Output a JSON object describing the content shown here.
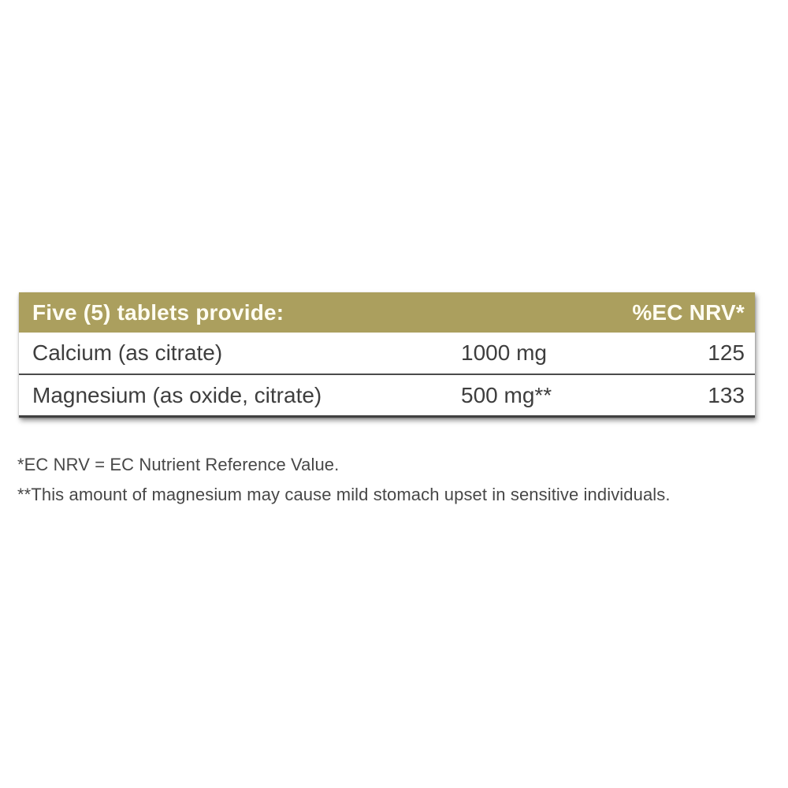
{
  "label": {
    "header": {
      "title": "Five (5) tablets provide:",
      "nrv_column": "%EC NRV*"
    },
    "rows": [
      {
        "nutrient": "Calcium (as citrate)",
        "amount": "1000 mg",
        "nrv": "125"
      },
      {
        "nutrient": "Magnesium (as oxide, citrate)",
        "amount": "500 mg**",
        "nrv": "133"
      }
    ],
    "footnotes": [
      "*EC NRV = EC Nutrient Reference Value.",
      "**This amount of magnesium may cause mild stomach upset in sensitive individuals."
    ]
  },
  "colors": {
    "header_background": "#ab9f5e",
    "header_text": "#fffdf2",
    "row_text": "#3e3e3e",
    "divider": "#4b4b4b",
    "page_background": "#ffffff"
  }
}
